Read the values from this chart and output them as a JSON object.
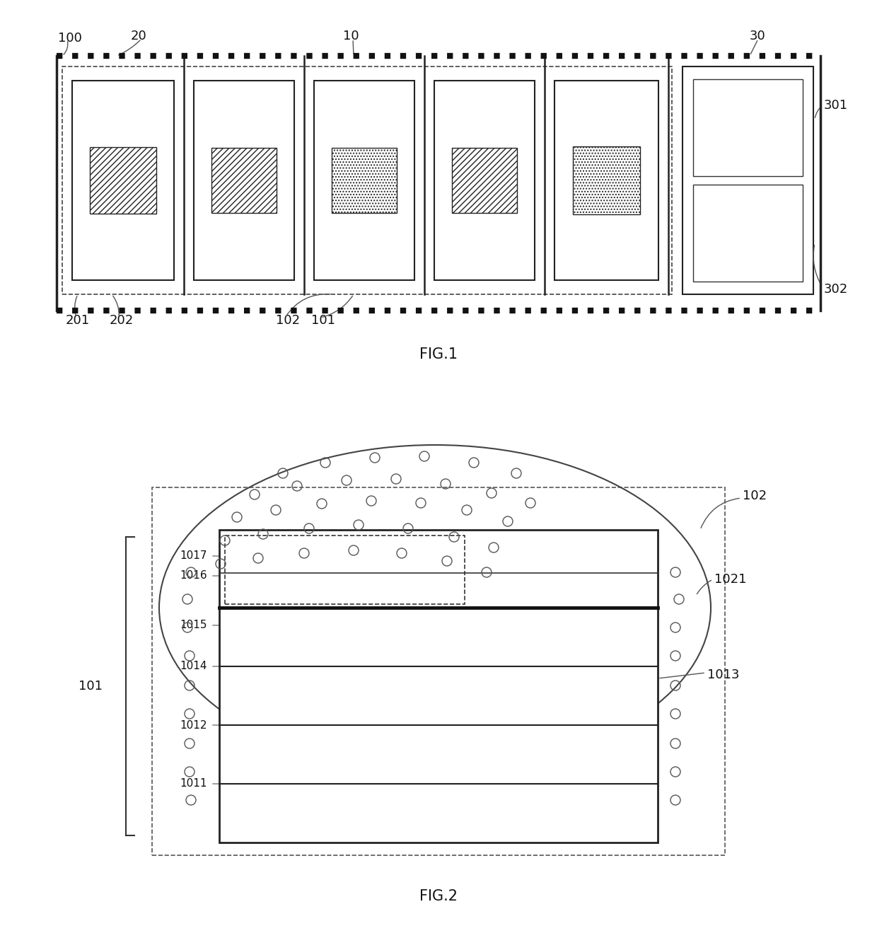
{
  "bg_color": "#ffffff",
  "line_color": "#222222",
  "fig1_title": "FIG.1",
  "fig2_title": "FIG.2"
}
